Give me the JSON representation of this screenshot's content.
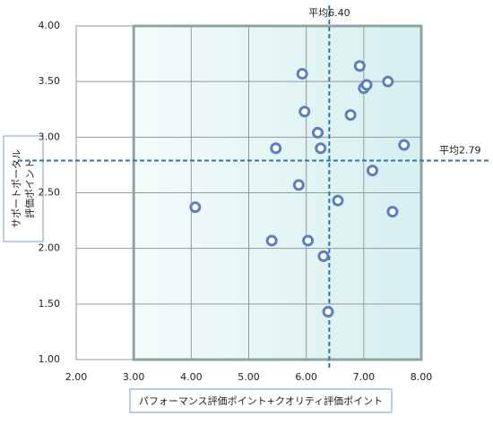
{
  "chart_data": {
    "type": "scatter",
    "xlabel": "パフォーマンス評価ポイント+クオリティ評価ポイント",
    "ylabel": [
      "サポートポータル",
      "評価ポイント"
    ],
    "series": [
      {
        "color": "#5b7fbf",
        "x": [
          4.07,
          5.4,
          5.47,
          5.87,
          5.93,
          5.97,
          6.03,
          6.2,
          6.25,
          6.3,
          6.38,
          6.55,
          6.77,
          6.93,
          7.0,
          7.05,
          7.15,
          7.42,
          7.5,
          7.7
        ],
        "values": [
          2.37,
          2.07,
          2.9,
          2.57,
          3.57,
          3.23,
          2.07,
          3.04,
          2.9,
          1.93,
          1.43,
          2.43,
          3.2,
          3.64,
          3.44,
          3.47,
          2.7,
          3.5,
          2.33,
          2.93
        ]
      }
    ],
    "xlim": [
      2,
      8
    ],
    "xticks": [
      {
        "value": 2,
        "label": "2.00"
      },
      {
        "value": 3,
        "label": "3.00"
      },
      {
        "value": 4,
        "label": "4.00"
      },
      {
        "value": 5,
        "label": "5.00"
      },
      {
        "value": 6,
        "label": "6.00"
      },
      {
        "value": 7,
        "label": "7.00"
      },
      {
        "value": 8,
        "label": "8.00"
      }
    ],
    "ylim": [
      1,
      4
    ],
    "yticks": [
      {
        "value": 1,
        "label": "1.00"
      },
      {
        "value": 1.5,
        "label": "1.50"
      },
      {
        "value": 2,
        "label": "2.00"
      },
      {
        "value": 2.5,
        "label": "2.50"
      },
      {
        "value": 3,
        "label": "3.00"
      },
      {
        "value": 3.5,
        "label": "3.50"
      },
      {
        "value": 4,
        "label": "4.00"
      }
    ],
    "grid": true,
    "mean_x": {
      "value": 6.4,
      "label": "平均6.40"
    },
    "mean_y": {
      "value": 2.79,
      "label": "平均2.79"
    },
    "mean_color": "#2e75b6"
  }
}
